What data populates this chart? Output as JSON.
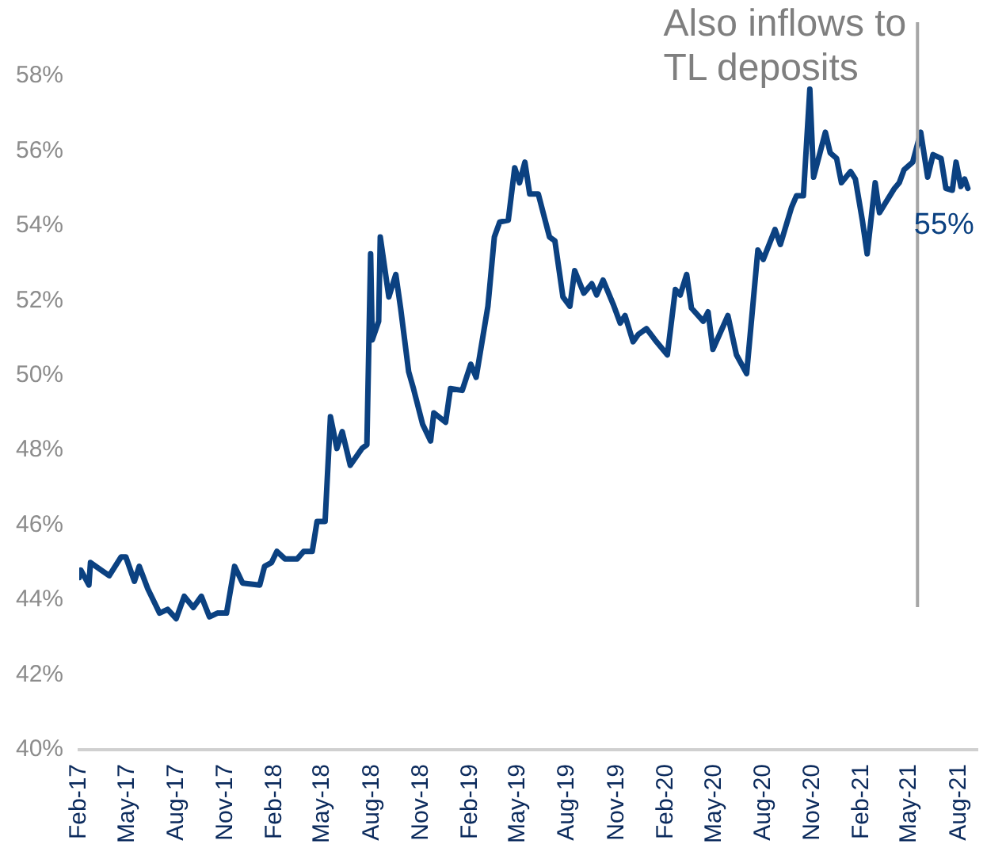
{
  "chart_data": {
    "type": "line",
    "x": [
      "2017-02-01",
      "2017-02-04",
      "2017-02-19",
      "2017-02-22",
      "2017-03-14",
      "2017-03-29",
      "2017-04-20",
      "2017-04-29",
      "2017-05-15",
      "2017-05-24",
      "2017-06-09",
      "2017-07-01",
      "2017-07-16",
      "2017-08-01",
      "2017-08-16",
      "2017-09-02",
      "2017-09-17",
      "2017-10-02",
      "2017-10-17",
      "2017-11-03",
      "2017-11-18",
      "2017-12-03",
      "2018-01-04",
      "2018-01-13",
      "2018-01-26",
      "2018-02-05",
      "2018-02-20",
      "2018-03-15",
      "2018-03-27",
      "2018-04-12",
      "2018-04-21",
      "2018-05-06",
      "2018-05-16",
      "2018-05-28",
      "2018-06-07",
      "2018-06-22",
      "2018-07-14",
      "2018-07-23",
      "2018-07-30",
      "2018-08-02",
      "2018-08-14",
      "2018-08-17",
      "2018-09-02",
      "2018-09-15",
      "2018-09-24",
      "2018-10-09",
      "2018-10-18",
      "2018-11-04",
      "2018-11-19",
      "2018-11-25",
      "2018-12-17",
      "2018-12-26",
      "2019-01-17",
      "2019-02-02",
      "2019-02-12",
      "2019-03-06",
      "2019-03-18",
      "2019-03-28",
      "2019-04-13",
      "2019-04-25",
      "2019-05-04",
      "2019-05-14",
      "2019-05-23",
      "2019-06-08",
      "2019-06-29",
      "2019-07-09",
      "2019-07-24",
      "2019-08-06",
      "2019-08-15",
      "2019-09-01",
      "2019-09-16",
      "2019-09-25",
      "2019-10-07",
      "2019-10-26",
      "2019-11-08",
      "2019-11-17",
      "2019-12-02",
      "2019-12-12",
      "2019-12-27",
      "2020-01-12",
      "2020-02-04",
      "2020-02-19",
      "2020-02-28",
      "2020-03-11",
      "2020-03-20",
      "2020-04-11",
      "2020-04-20",
      "2020-04-29",
      "2020-05-27",
      "2020-06-12",
      "2020-07-01",
      "2020-07-22",
      "2020-08-01",
      "2020-08-23",
      "2020-09-02",
      "2020-09-23",
      "2020-10-02",
      "2020-10-15",
      "2020-10-27",
      "2020-11-03",
      "2020-11-25",
      "2020-12-04",
      "2020-12-16",
      "2020-12-25",
      "2021-01-11",
      "2021-01-20",
      "2021-02-02",
      "2021-02-11",
      "2021-02-26",
      "2021-03-06",
      "2021-03-21",
      "2021-04-03",
      "2021-04-12",
      "2021-04-21",
      "2021-05-07",
      "2021-05-22",
      "2021-06-04",
      "2021-06-14",
      "2021-06-29",
      "2021-07-08",
      "2021-07-20",
      "2021-07-27",
      "2021-08-05",
      "2021-08-12",
      "2021-08-18"
    ],
    "series": [
      {
        "color": "#0b4181",
        "values": [
          44.6,
          44.8,
          44.4,
          45.0,
          44.8,
          44.65,
          45.15,
          45.15,
          44.5,
          44.9,
          44.3,
          43.65,
          43.75,
          43.5,
          44.1,
          43.8,
          44.1,
          43.55,
          43.65,
          43.65,
          44.9,
          44.45,
          44.4,
          44.9,
          45.0,
          45.3,
          45.1,
          45.1,
          45.3,
          45.3,
          46.1,
          46.1,
          48.9,
          48.05,
          48.5,
          47.6,
          48.05,
          48.15,
          53.25,
          50.95,
          51.45,
          53.7,
          52.1,
          52.7,
          51.8,
          50.1,
          49.65,
          48.7,
          48.25,
          49.0,
          48.75,
          49.65,
          49.6,
          50.3,
          49.95,
          51.85,
          53.7,
          54.1,
          54.15,
          55.55,
          55.15,
          55.7,
          54.85,
          54.85,
          53.7,
          53.6,
          52.1,
          51.85,
          52.8,
          52.2,
          52.45,
          52.15,
          52.55,
          51.9,
          51.4,
          51.6,
          50.9,
          51.1,
          51.25,
          50.95,
          50.55,
          52.3,
          52.15,
          52.7,
          51.8,
          51.45,
          51.7,
          50.7,
          51.6,
          50.55,
          50.05,
          53.35,
          53.1,
          53.9,
          53.5,
          54.5,
          54.8,
          54.8,
          57.65,
          55.3,
          56.5,
          55.95,
          55.8,
          55.15,
          55.45,
          55.25,
          54.15,
          53.25,
          55.15,
          54.35,
          54.7,
          55.0,
          55.15,
          55.5,
          55.7,
          56.5,
          55.3,
          55.9,
          55.8,
          55.0,
          54.95,
          55.7,
          55.05,
          55.25,
          55.0
        ]
      }
    ],
    "xlim": [
      "2017-02-01",
      "2021-09-05"
    ],
    "xticks": [
      {
        "value": "2017-02-01",
        "label": "Feb-17"
      },
      {
        "value": "2017-05-01",
        "label": "May-17"
      },
      {
        "value": "2017-08-01",
        "label": "Aug-17"
      },
      {
        "value": "2017-11-01",
        "label": "Nov-17"
      },
      {
        "value": "2018-02-01",
        "label": "Feb-18"
      },
      {
        "value": "2018-05-01",
        "label": "May-18"
      },
      {
        "value": "2018-08-01",
        "label": "Aug-18"
      },
      {
        "value": "2018-11-01",
        "label": "Nov-18"
      },
      {
        "value": "2019-02-01",
        "label": "Feb-19"
      },
      {
        "value": "2019-05-01",
        "label": "May-19"
      },
      {
        "value": "2019-08-01",
        "label": "Aug-19"
      },
      {
        "value": "2019-11-01",
        "label": "Nov-19"
      },
      {
        "value": "2020-02-01",
        "label": "Feb-20"
      },
      {
        "value": "2020-05-01",
        "label": "May-20"
      },
      {
        "value": "2020-08-01",
        "label": "Aug-20"
      },
      {
        "value": "2020-11-01",
        "label": "Nov-20"
      },
      {
        "value": "2021-02-01",
        "label": "Feb-21"
      },
      {
        "value": "2021-05-01",
        "label": "May-21"
      },
      {
        "value": "2021-08-01",
        "label": "Aug-21"
      }
    ],
    "ylim": [
      40,
      58
    ],
    "yticks": [
      {
        "value": 40,
        "label": "40%"
      },
      {
        "value": 42,
        "label": "42%"
      },
      {
        "value": 44,
        "label": "44%"
      },
      {
        "value": 46,
        "label": "46%"
      },
      {
        "value": 48,
        "label": "48%"
      },
      {
        "value": 50,
        "label": "50%"
      },
      {
        "value": 52,
        "label": "52%"
      },
      {
        "value": 54,
        "label": "54%"
      },
      {
        "value": 56,
        "label": "56%"
      },
      {
        "value": 58,
        "label": "58%"
      }
    ],
    "ref_lines": [
      {
        "axis": "x",
        "value": "2021-05-16",
        "label": "Also inflows to TL deposits",
        "color": "#a6a6a6"
      }
    ],
    "annotations": [
      {
        "text": "55%",
        "x": "2021-08-18",
        "y": 55
      }
    ],
    "grid": false,
    "legend": false,
    "marker": "none",
    "line_style": "solid"
  }
}
